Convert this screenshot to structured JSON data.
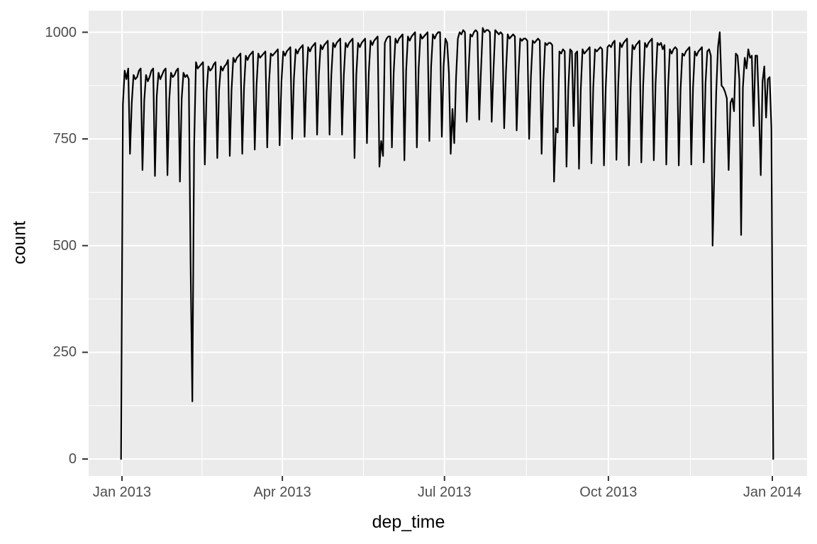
{
  "chart": {
    "x_axis_title": "dep_time",
    "y_axis_title": "count",
    "x_tick_labels": [
      "Jan 2013",
      "Apr 2013",
      "Jul 2013",
      "Oct 2013",
      "Jan 2014"
    ],
    "y_tick_labels": [
      "0",
      "250",
      "500",
      "750",
      "1000"
    ],
    "colors": {
      "panel_background": "#EBEBEB",
      "grid_line": "#FFFFFF",
      "series_line": "#000000",
      "tick_label": "#4D4D4D",
      "axis_title": "#000000",
      "tick_mark": "#333333",
      "page_background": "#FFFFFF"
    }
  },
  "chart_data": {
    "type": "line",
    "subtype": "frequency-polygon of flights per day (1-day bins), ggplot2 style",
    "title": "",
    "xlabel": "dep_time",
    "ylabel": "count",
    "x_tick_labels": [
      "Jan 2013",
      "Apr 2013",
      "Jul 2013",
      "Oct 2013",
      "Jan 2014"
    ],
    "x_tick_day_offsets_from_2013_01_01": [
      0,
      90,
      181,
      273,
      365
    ],
    "y_ticks": [
      0,
      250,
      500,
      750,
      1000
    ],
    "ylim": [
      0,
      1010
    ],
    "grid": "white major and minor gridlines on gray panel",
    "legend": "none",
    "x_start_date": "2012-12-31",
    "x_step_days": 1,
    "note": "One value per day; first and last values are the zero endpoints where the frequency polygon closes at Jan 2013 and Jan 2014. Weekly pattern: weekday highs ~900-1000, Saturday lows ~650-790. Deep dips: Feb 9 blizzard ~135, Thanksgiving Nov 28 ~500, Dec 14 storm ~525, Dec 25 ~665.",
    "series": [
      {
        "name": "count",
        "values": [
          0,
          831,
          910,
          890,
          915,
          715,
          835,
          900,
          890,
          895,
          910,
          915,
          677,
          840,
          900,
          885,
          895,
          910,
          915,
          663,
          850,
          905,
          890,
          900,
          910,
          915,
          665,
          840,
          905,
          895,
          900,
          910,
          915,
          650,
          845,
          905,
          895,
          900,
          890,
          460,
          135,
          730,
          930,
          915,
          920,
          925,
          930,
          690,
          860,
          920,
          910,
          915,
          925,
          930,
          705,
          865,
          920,
          910,
          920,
          925,
          935,
          710,
          865,
          940,
          930,
          940,
          945,
          950,
          715,
          870,
          945,
          935,
          945,
          950,
          955,
          725,
          875,
          950,
          940,
          945,
          950,
          955,
          730,
          880,
          950,
          945,
          950,
          955,
          960,
          735,
          885,
          955,
          945,
          955,
          960,
          965,
          750,
          890,
          960,
          950,
          960,
          965,
          970,
          755,
          895,
          965,
          955,
          965,
          970,
          975,
          760,
          900,
          970,
          960,
          970,
          975,
          980,
          760,
          900,
          975,
          965,
          975,
          980,
          985,
          760,
          900,
          975,
          965,
          975,
          980,
          985,
          705,
          900,
          975,
          965,
          975,
          980,
          985,
          740,
          905,
          980,
          970,
          980,
          985,
          990,
          685,
          745,
          710,
          975,
          985,
          990,
          990,
          730,
          905,
          985,
          975,
          985,
          990,
          995,
          700,
          910,
          990,
          980,
          990,
          995,
          1000,
          730,
          915,
          995,
          985,
          990,
          995,
          1000,
          745,
          920,
          995,
          985,
          995,
          1000,
          1000,
          755,
          920,
          985,
          975,
          905,
          715,
          820,
          740,
          895,
          985,
          1000,
          995,
          1005,
          1000,
          790,
          905,
          995,
          990,
          1000,
          1005,
          1000,
          795,
          910,
          1010,
          1000,
          1005,
          1005,
          1000,
          790,
          910,
          1005,
          1000,
          995,
          1000,
          995,
          775,
          905,
          995,
          985,
          990,
          995,
          990,
          770,
          900,
          985,
          980,
          985,
          985,
          980,
          750,
          895,
          980,
          975,
          980,
          985,
          980,
          715,
          885,
          975,
          970,
          975,
          975,
          970,
          650,
          775,
          765,
          955,
          950,
          960,
          955,
          685,
          865,
          960,
          955,
          780,
          950,
          955,
          680,
          865,
          960,
          950,
          955,
          960,
          965,
          693,
          870,
          960,
          955,
          960,
          965,
          960,
          688,
          870,
          965,
          970,
          965,
          975,
          980,
          701,
          875,
          975,
          965,
          975,
          980,
          985,
          688,
          870,
          970,
          960,
          970,
          975,
          980,
          695,
          875,
          975,
          965,
          975,
          980,
          985,
          700,
          880,
          975,
          970,
          975,
          960,
          970,
          690,
          870,
          960,
          950,
          960,
          965,
          960,
          688,
          865,
          950,
          945,
          955,
          960,
          965,
          690,
          870,
          955,
          945,
          955,
          960,
          965,
          695,
          880,
          955,
          960,
          945,
          500,
          680,
          860,
          965,
          1000,
          875,
          870,
          860,
          845,
          677,
          835,
          845,
          815,
          950,
          945,
          890,
          525,
          870,
          940,
          915,
          960,
          940,
          945,
          780,
          945,
          945,
          820,
          665,
          885,
          920,
          800,
          890,
          895,
          776,
          0
        ]
      }
    ]
  }
}
